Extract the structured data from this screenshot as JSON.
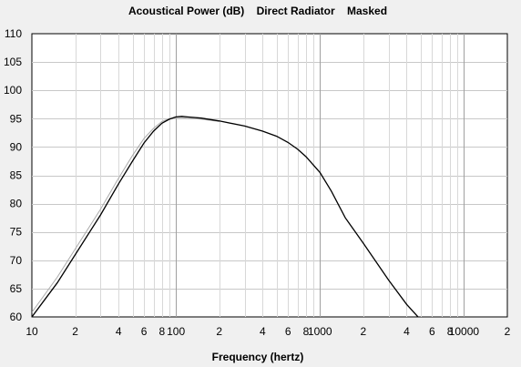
{
  "chart_data": {
    "type": "line",
    "title": "Acoustical Power (dB)    Direct Radiator    Masked",
    "xlabel": "Frequency (hertz)",
    "ylabel": "",
    "xscale": "log",
    "xlim": [
      10,
      20000
    ],
    "ylim": [
      60,
      110
    ],
    "grid": true,
    "y_ticks": [
      60,
      65,
      70,
      75,
      80,
      85,
      90,
      95,
      100,
      105,
      110
    ],
    "y_tick_labels": [
      "60",
      "65",
      "70",
      "75",
      "80",
      "85",
      "90",
      "95",
      "100",
      "105",
      "110"
    ],
    "x_ticks": [
      10,
      20,
      40,
      60,
      80,
      100,
      200,
      400,
      600,
      800,
      1000,
      2000,
      4000,
      6000,
      8000,
      10000,
      20000
    ],
    "x_tick_labels": [
      "10",
      "2",
      "4",
      "6",
      "8",
      "100",
      "2",
      "4",
      "6",
      "8",
      "1000",
      "2",
      "4",
      "6",
      "8",
      "10000",
      "2"
    ],
    "series": [
      {
        "color": "#000000",
        "x": [
          10,
          15,
          20,
          30,
          40,
          50,
          60,
          70,
          80,
          90,
          100,
          110,
          120,
          150,
          200,
          300,
          400,
          500,
          600,
          700,
          800,
          1000,
          1200,
          1500,
          2000,
          3000,
          4000,
          5000
        ],
        "y": [
          60,
          66,
          71,
          78,
          83.5,
          87.5,
          90.7,
          92.8,
          94.2,
          94.9,
          95.3,
          95.4,
          95.3,
          95.1,
          94.6,
          93.7,
          92.8,
          91.9,
          90.8,
          89.6,
          88.3,
          85.5,
          82.2,
          77.5,
          73,
          66.5,
          62.2,
          59.5
        ]
      },
      {
        "color": "#aaaaaa",
        "x": [
          10,
          15,
          20,
          30,
          40,
          50,
          60,
          70,
          80,
          90,
          100,
          110,
          120,
          150,
          200
        ],
        "y": [
          60.8,
          67,
          72,
          79,
          84.5,
          88.5,
          91.5,
          93.3,
          94.5,
          95,
          95.2,
          95.2,
          95.1,
          94.9,
          94.5
        ]
      }
    ]
  }
}
